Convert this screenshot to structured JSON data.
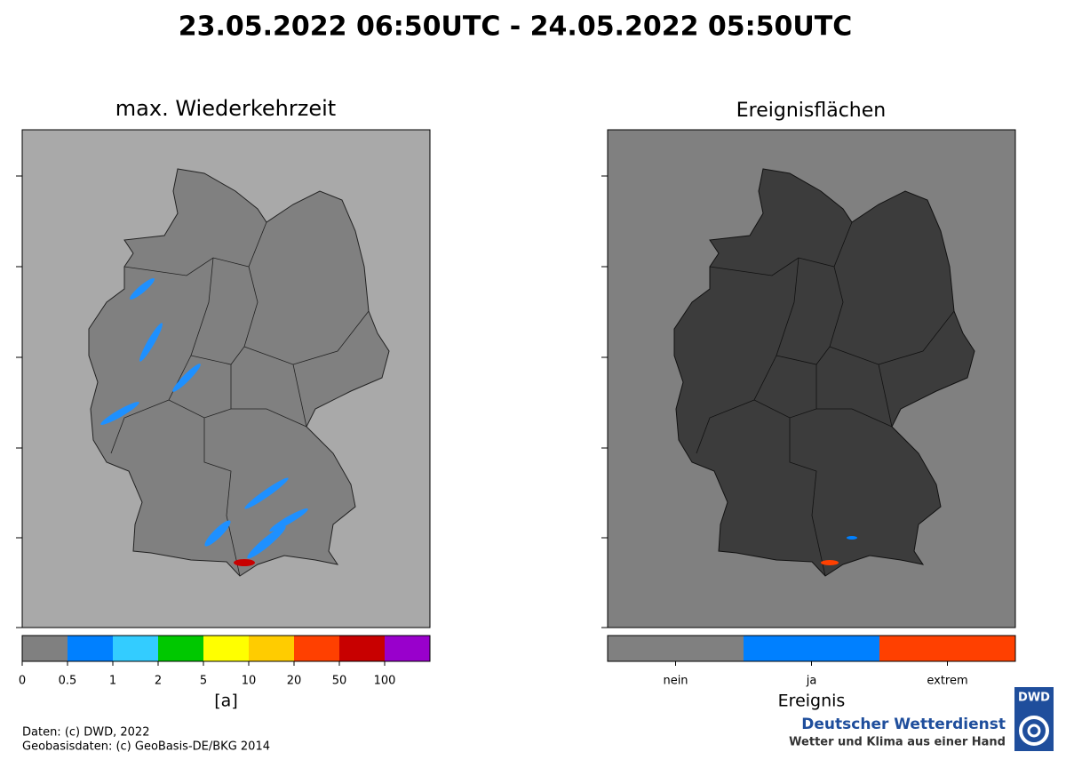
{
  "title": "23.05.2022 06:50UTC - 24.05.2022 05:50UTC",
  "left_panel": {
    "title": "max. Wiederkehrzeit",
    "colorbar": {
      "colors": [
        "#808080",
        "#0080ff",
        "#33ccff",
        "#00c800",
        "#ffff00",
        "#ffcc00",
        "#ff4000",
        "#c80000",
        "#9900cc"
      ],
      "tick_labels": [
        "0",
        "0.5",
        "1",
        "2",
        "5",
        "10",
        "20",
        "50",
        "100"
      ],
      "label": "[a]"
    }
  },
  "right_panel": {
    "title": "Ereignisflächen",
    "colorbar": {
      "colors": [
        "#808080",
        "#0080ff",
        "#ff4000"
      ],
      "tick_labels": [
        "nein",
        "ja",
        "extrem"
      ],
      "label": "Ereignis"
    }
  },
  "credits": [
    "Daten: (c) DWD, 2022",
    "Geobasisdaten: (c) GeoBasis-DE/BKG 2014"
  ],
  "logo": {
    "badge": "DWD",
    "name": "Deutscher Wetterdienst",
    "slogan": "Wetter und Klima aus einer Hand"
  }
}
